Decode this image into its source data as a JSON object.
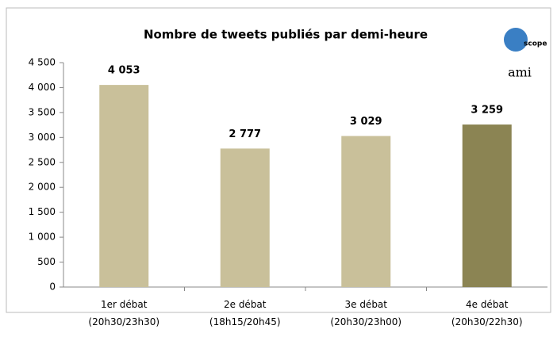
{
  "chart_data": {
    "type": "bar",
    "title": "Nombre de tweets publiés par demi-heure",
    "categories": [
      "1er débat\n(20h30/23h30)",
      "2e débat\n(18h15/20h45)",
      "3e débat\n(20h30/23h00)",
      "4e débat\n(20h30/22h30)"
    ],
    "values": [
      4053,
      2777,
      3029,
      3259
    ],
    "value_labels": [
      "4 053",
      "2 777",
      "3 029",
      "3 259"
    ],
    "colors": [
      "#c9c09a",
      "#c9c09a",
      "#c9c09a",
      "#8b8453"
    ],
    "ylim": [
      0,
      4500
    ],
    "yticks": [
      0,
      500,
      {
        "value": 1000,
        "label": "1 000"
      },
      {
        "value": 1500,
        "label": "1 500"
      },
      {
        "value": 2000,
        "label": "2 000"
      },
      {
        "value": 2500,
        "label": "2 500"
      },
      {
        "value": 3000,
        "label": "3 000"
      },
      {
        "value": 3500,
        "label": "3 500"
      },
      {
        "value": 4000,
        "label": "4 000"
      },
      {
        "value": 4500,
        "label": "4 500"
      }
    ],
    "logos": [
      "scope",
      "ami"
    ]
  }
}
